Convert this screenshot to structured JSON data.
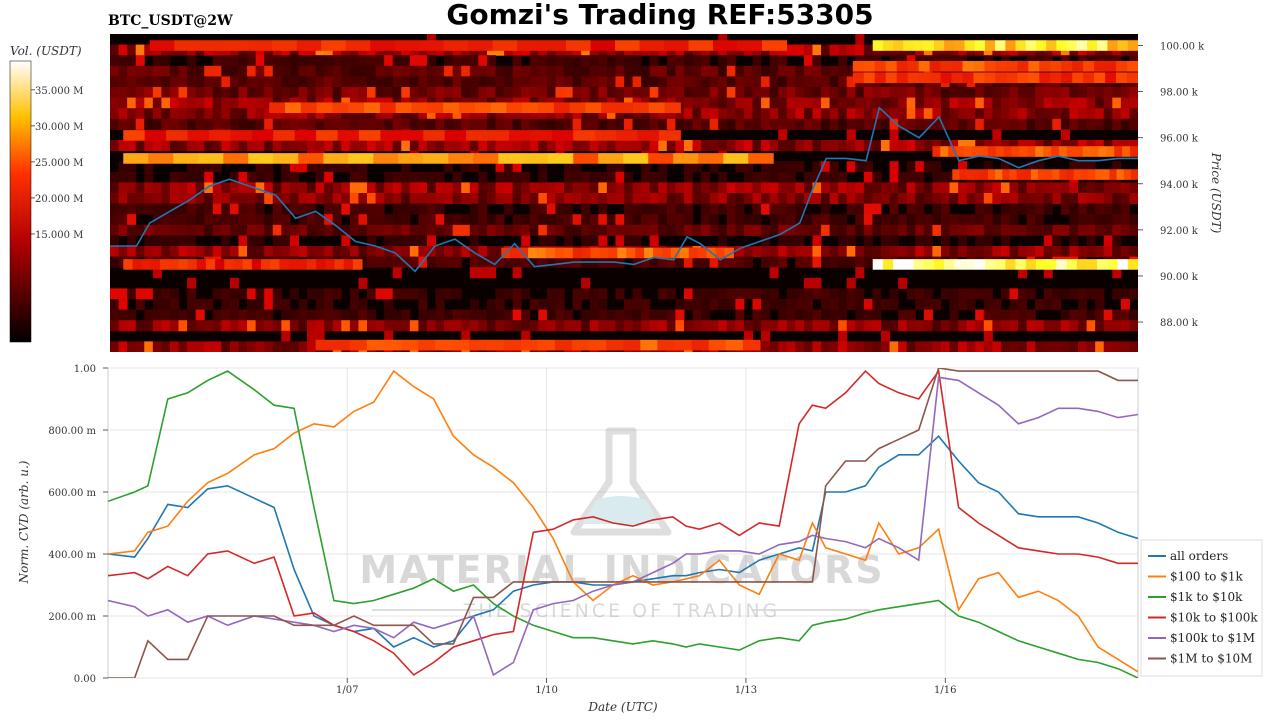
{
  "page": {
    "title": "Gomzi's Trading REF:53305",
    "symbol": "BTC_USDT@2W"
  },
  "watermark": {
    "line1": "MATERIAL INDICATORS",
    "line2": "THE SCIENCE OF TRADING"
  },
  "colors": {
    "all_orders": "#1f77b4",
    "r100_1k": "#ff7f0e",
    "r1k_10k": "#2ca02c",
    "r10k_100k": "#d62728",
    "r100k_1m": "#9467bd",
    "r1m_10m": "#8c564b"
  },
  "chart_data": [
    {
      "type": "heatmap",
      "name": "orderbook-heatmap",
      "colorbar_label": "Vol. (USDT)",
      "colorbar_ticks": [
        "15.000 M",
        "20.000 M",
        "25.000 M",
        "30.000 M",
        "35.000 M"
      ],
      "colorbar_values": [
        15,
        20,
        25,
        30,
        35
      ],
      "colorbar_range": [
        0,
        39
      ],
      "colormap": "hot",
      "ylabel": "Price (USDT)",
      "yticks": [
        "88.00 k",
        "90.00 k",
        "92.00 k",
        "94.00 k",
        "96.00 k",
        "98.00 k",
        "100.00 k"
      ],
      "ytick_values": [
        88,
        90,
        92,
        94,
        96,
        98,
        100
      ],
      "ylim": [
        86.7,
        100.5
      ],
      "xlim": [
        3.4,
        18.9
      ],
      "price_series": {
        "color": "#1f77b4",
        "x": [
          3.4,
          3.8,
          4.0,
          4.3,
          4.6,
          4.9,
          5.2,
          5.6,
          5.9,
          6.2,
          6.5,
          6.8,
          7.1,
          7.4,
          7.7,
          8.0,
          8.3,
          8.6,
          8.9,
          9.2,
          9.5,
          9.8,
          10.1,
          10.4,
          10.7,
          11.0,
          11.3,
          11.6,
          11.9,
          12.1,
          12.3,
          12.6,
          12.9,
          13.2,
          13.5,
          13.8,
          14.0,
          14.2,
          14.5,
          14.8,
          15.0,
          15.3,
          15.6,
          15.9,
          16.2,
          16.5,
          16.8,
          17.1,
          17.4,
          17.7,
          18.0,
          18.3,
          18.6,
          18.9
        ],
        "y": [
          91.3,
          91.3,
          92.3,
          92.8,
          93.3,
          93.9,
          94.2,
          93.8,
          93.5,
          92.5,
          92.8,
          92.2,
          91.5,
          91.3,
          91.0,
          90.2,
          91.3,
          91.6,
          91.0,
          90.5,
          91.4,
          90.4,
          90.5,
          90.6,
          90.6,
          90.6,
          90.5,
          90.8,
          90.7,
          91.7,
          91.4,
          90.7,
          91.2,
          91.5,
          91.8,
          92.3,
          93.8,
          95.1,
          95.1,
          95.0,
          97.3,
          96.5,
          96.0,
          96.9,
          95.0,
          95.2,
          95.1,
          94.7,
          95.0,
          95.2,
          95.0,
          95.0,
          95.1,
          95.1
        ]
      }
    },
    {
      "type": "line",
      "name": "normalized-cvd",
      "xlabel": "Date (UTC)",
      "ylabel": "Norm. CVD (arb. u.)",
      "xticks": [
        "1/07",
        "1/10",
        "1/13",
        "1/16"
      ],
      "xtick_values": [
        7,
        10,
        13,
        16
      ],
      "xlim": [
        3.4,
        18.9
      ],
      "yticks": [
        "0.00",
        "200.00 m",
        "400.00 m",
        "600.00 m",
        "800.00 m",
        "1.00"
      ],
      "ytick_values": [
        0,
        0.2,
        0.4,
        0.6,
        0.8,
        1.0
      ],
      "ylim": [
        0,
        1.0
      ],
      "grid": true,
      "legend_position": "bottom-right",
      "x": [
        3.4,
        3.8,
        4.0,
        4.3,
        4.6,
        4.9,
        5.2,
        5.6,
        5.9,
        6.2,
        6.5,
        6.8,
        7.1,
        7.4,
        7.7,
        8.0,
        8.3,
        8.6,
        8.9,
        9.2,
        9.5,
        9.8,
        10.1,
        10.4,
        10.7,
        11.0,
        11.3,
        11.6,
        11.9,
        12.1,
        12.3,
        12.6,
        12.9,
        13.2,
        13.5,
        13.8,
        14.0,
        14.2,
        14.5,
        14.8,
        15.0,
        15.3,
        15.6,
        15.9,
        16.2,
        16.5,
        16.8,
        17.1,
        17.4,
        17.7,
        18.0,
        18.3,
        18.6,
        18.9
      ],
      "series": [
        {
          "name": "all orders",
          "color": "#1f77b4",
          "values": [
            0.4,
            0.39,
            0.45,
            0.56,
            0.55,
            0.61,
            0.62,
            0.58,
            0.55,
            0.35,
            0.2,
            0.17,
            0.15,
            0.16,
            0.1,
            0.13,
            0.1,
            0.12,
            0.2,
            0.22,
            0.28,
            0.3,
            0.31,
            0.31,
            0.3,
            0.3,
            0.31,
            0.32,
            0.33,
            0.33,
            0.34,
            0.35,
            0.34,
            0.38,
            0.4,
            0.42,
            0.41,
            0.6,
            0.6,
            0.62,
            0.68,
            0.72,
            0.72,
            0.78,
            0.7,
            0.63,
            0.6,
            0.53,
            0.52,
            0.52,
            0.52,
            0.5,
            0.47,
            0.45
          ]
        },
        {
          "name": "$100 to $1k",
          "color": "#ff7f0e",
          "values": [
            0.4,
            0.41,
            0.47,
            0.49,
            0.57,
            0.63,
            0.66,
            0.72,
            0.74,
            0.79,
            0.82,
            0.81,
            0.86,
            0.89,
            0.99,
            0.94,
            0.9,
            0.78,
            0.72,
            0.68,
            0.63,
            0.55,
            0.45,
            0.31,
            0.25,
            0.3,
            0.33,
            0.3,
            0.31,
            0.32,
            0.33,
            0.38,
            0.3,
            0.27,
            0.4,
            0.38,
            0.5,
            0.42,
            0.4,
            0.38,
            0.5,
            0.4,
            0.42,
            0.48,
            0.22,
            0.32,
            0.34,
            0.26,
            0.28,
            0.25,
            0.2,
            0.1,
            0.06,
            0.02
          ]
        },
        {
          "name": "$1k to $10k",
          "color": "#2ca02c",
          "values": [
            0.57,
            0.6,
            0.62,
            0.9,
            0.92,
            0.96,
            0.99,
            0.93,
            0.88,
            0.87,
            0.55,
            0.25,
            0.24,
            0.25,
            0.27,
            0.29,
            0.32,
            0.28,
            0.3,
            0.24,
            0.2,
            0.17,
            0.15,
            0.13,
            0.13,
            0.12,
            0.11,
            0.12,
            0.11,
            0.1,
            0.11,
            0.1,
            0.09,
            0.12,
            0.13,
            0.12,
            0.17,
            0.18,
            0.19,
            0.21,
            0.22,
            0.23,
            0.24,
            0.25,
            0.2,
            0.18,
            0.15,
            0.12,
            0.1,
            0.08,
            0.06,
            0.05,
            0.03,
            0.0
          ]
        },
        {
          "name": "$10k to $100k",
          "color": "#d62728",
          "values": [
            0.33,
            0.34,
            0.32,
            0.36,
            0.33,
            0.4,
            0.41,
            0.37,
            0.39,
            0.2,
            0.21,
            0.17,
            0.15,
            0.12,
            0.08,
            0.01,
            0.05,
            0.1,
            0.12,
            0.14,
            0.15,
            0.47,
            0.48,
            0.51,
            0.52,
            0.5,
            0.49,
            0.51,
            0.52,
            0.49,
            0.48,
            0.5,
            0.46,
            0.5,
            0.49,
            0.82,
            0.88,
            0.87,
            0.92,
            0.99,
            0.95,
            0.92,
            0.9,
            0.99,
            0.55,
            0.5,
            0.46,
            0.42,
            0.41,
            0.4,
            0.4,
            0.39,
            0.37,
            0.37
          ]
        },
        {
          "name": "$100k to $1M",
          "color": "#9467bd",
          "values": [
            0.25,
            0.23,
            0.2,
            0.22,
            0.18,
            0.2,
            0.17,
            0.2,
            0.19,
            0.18,
            0.17,
            0.15,
            0.17,
            0.16,
            0.13,
            0.18,
            0.16,
            0.18,
            0.2,
            0.01,
            0.05,
            0.22,
            0.24,
            0.25,
            0.28,
            0.3,
            0.31,
            0.34,
            0.37,
            0.4,
            0.4,
            0.41,
            0.41,
            0.4,
            0.43,
            0.44,
            0.46,
            0.45,
            0.44,
            0.42,
            0.45,
            0.42,
            0.38,
            0.97,
            0.96,
            0.92,
            0.88,
            0.82,
            0.84,
            0.87,
            0.87,
            0.86,
            0.84,
            0.85
          ]
        },
        {
          "name": "$1M to $10M",
          "color": "#8c564b",
          "values": [
            0.0,
            0.0,
            0.12,
            0.06,
            0.06,
            0.2,
            0.2,
            0.2,
            0.2,
            0.17,
            0.17,
            0.17,
            0.2,
            0.17,
            0.17,
            0.17,
            0.11,
            0.11,
            0.26,
            0.26,
            0.31,
            0.31,
            0.31,
            0.31,
            0.31,
            0.31,
            0.31,
            0.31,
            0.31,
            0.31,
            0.31,
            0.31,
            0.31,
            0.31,
            0.31,
            0.31,
            0.31,
            0.62,
            0.7,
            0.7,
            0.74,
            0.77,
            0.8,
            1.0,
            0.99,
            0.99,
            0.99,
            0.99,
            0.99,
            0.99,
            0.99,
            0.99,
            0.96,
            0.96
          ]
        }
      ]
    }
  ]
}
